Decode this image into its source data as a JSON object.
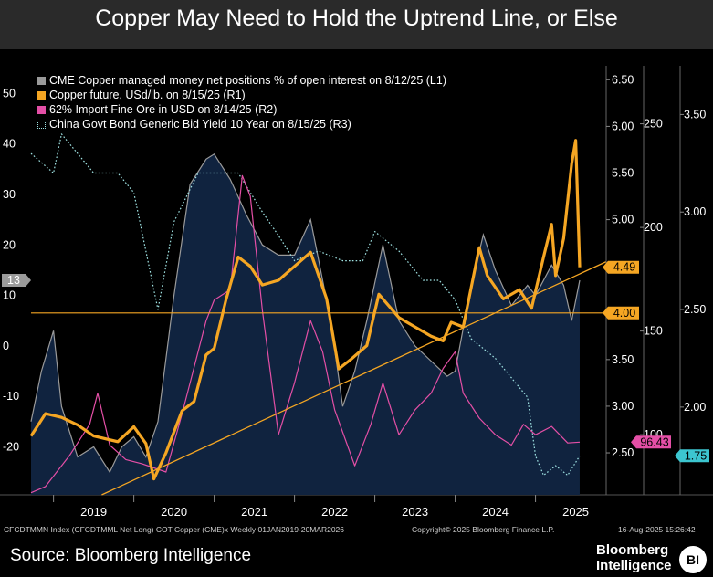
{
  "page": {
    "title": "Copper May Need to Hold the Uptrend Line, or Else",
    "footer_left": "CFCDTMMN Index (CFCDTMML Net Long) COT Copper (CME)x  Weekly 01JAN2019-20MAR2026",
    "footer_mid": "Copyright© 2025 Bloomberg Finance L.P.",
    "footer_right": "16-Aug-2025 15:26:42",
    "source": "Source: Bloomberg Intelligence",
    "brand_line1": "Bloomberg",
    "brand_line2": "Intelligence",
    "brand_badge": "BI"
  },
  "chart_data": {
    "type": "line",
    "title": "Copper May Need to Hold the Uptrend Line, or Else",
    "x_axis": {
      "range": [
        2018.72,
        2025.88
      ],
      "tick_labels": [
        "2019",
        "2020",
        "2021",
        "2022",
        "2023",
        "2024",
        "2025"
      ]
    },
    "axes": {
      "L1": {
        "range": [
          -29.5,
          55.5
        ],
        "ticks": [
          -20,
          -10,
          0,
          10,
          20,
          30,
          40,
          50
        ]
      },
      "R1": {
        "range": [
          2.05,
          6.65
        ],
        "ticks": [
          "2.50",
          "3.00",
          "3.50",
          "4.00",
          "4.50",
          "5.00",
          "5.50",
          "6.00",
          "6.50"
        ]
      },
      "R2": {
        "range": [
          71.0,
          278.0
        ],
        "ticks": [
          100,
          150,
          200,
          250
        ]
      },
      "R3": {
        "range": [
          1.55,
          3.75
        ],
        "ticks": [
          "2.00",
          "2.50",
          "3.00",
          "3.50"
        ]
      }
    },
    "series": [
      {
        "name": "CME Copper managed money net positions % of open interest on 8/12/25 (L1)",
        "axis": "L1",
        "color": "#9a9a9a",
        "fill": "#10233f",
        "points": [
          [
            2018.72,
            -15
          ],
          [
            2018.85,
            -5
          ],
          [
            2019.0,
            3
          ],
          [
            2019.1,
            -12
          ],
          [
            2019.3,
            -22
          ],
          [
            2019.5,
            -20
          ],
          [
            2019.7,
            -25
          ],
          [
            2019.85,
            -20
          ],
          [
            2020.0,
            -18
          ],
          [
            2020.15,
            -22
          ],
          [
            2020.3,
            -15
          ],
          [
            2020.5,
            10
          ],
          [
            2020.7,
            32
          ],
          [
            2020.9,
            37
          ],
          [
            2021.0,
            38
          ],
          [
            2021.2,
            33
          ],
          [
            2021.4,
            26
          ],
          [
            2021.6,
            20
          ],
          [
            2021.8,
            18
          ],
          [
            2022.0,
            18
          ],
          [
            2022.2,
            25
          ],
          [
            2022.45,
            5
          ],
          [
            2022.6,
            -12
          ],
          [
            2022.75,
            -5
          ],
          [
            2022.9,
            5
          ],
          [
            2023.1,
            20
          ],
          [
            2023.3,
            5
          ],
          [
            2023.5,
            0
          ],
          [
            2023.7,
            -3
          ],
          [
            2023.9,
            -6
          ],
          [
            2024.0,
            -5
          ],
          [
            2024.2,
            12
          ],
          [
            2024.35,
            22
          ],
          [
            2024.5,
            15
          ],
          [
            2024.7,
            8
          ],
          [
            2024.9,
            12
          ],
          [
            2025.0,
            10
          ],
          [
            2025.2,
            16
          ],
          [
            2025.35,
            12
          ],
          [
            2025.45,
            5
          ],
          [
            2025.55,
            13
          ]
        ]
      },
      {
        "name": "Copper future, USd/lb. on 8/15/25 (R1)",
        "axis": "R1",
        "color": "#f5a623",
        "points": [
          [
            2018.72,
            2.68
          ],
          [
            2018.9,
            2.92
          ],
          [
            2019.1,
            2.88
          ],
          [
            2019.3,
            2.8
          ],
          [
            2019.5,
            2.68
          ],
          [
            2019.8,
            2.62
          ],
          [
            2020.0,
            2.78
          ],
          [
            2020.15,
            2.6
          ],
          [
            2020.25,
            2.22
          ],
          [
            2020.4,
            2.5
          ],
          [
            2020.6,
            2.95
          ],
          [
            2020.75,
            3.05
          ],
          [
            2020.9,
            3.55
          ],
          [
            2021.0,
            3.62
          ],
          [
            2021.15,
            4.15
          ],
          [
            2021.3,
            4.6
          ],
          [
            2021.45,
            4.5
          ],
          [
            2021.6,
            4.3
          ],
          [
            2021.8,
            4.35
          ],
          [
            2022.0,
            4.5
          ],
          [
            2022.2,
            4.65
          ],
          [
            2022.4,
            4.15
          ],
          [
            2022.55,
            3.4
          ],
          [
            2022.7,
            3.5
          ],
          [
            2022.9,
            3.65
          ],
          [
            2023.05,
            4.2
          ],
          [
            2023.3,
            3.95
          ],
          [
            2023.5,
            3.85
          ],
          [
            2023.7,
            3.75
          ],
          [
            2023.85,
            3.7
          ],
          [
            2023.95,
            3.9
          ],
          [
            2024.1,
            3.85
          ],
          [
            2024.3,
            4.7
          ],
          [
            2024.4,
            4.4
          ],
          [
            2024.6,
            4.15
          ],
          [
            2024.8,
            4.25
          ],
          [
            2024.95,
            4.05
          ],
          [
            2025.1,
            4.6
          ],
          [
            2025.2,
            4.95
          ],
          [
            2025.25,
            4.4
          ],
          [
            2025.35,
            4.8
          ],
          [
            2025.45,
            5.6
          ],
          [
            2025.5,
            5.85
          ],
          [
            2025.55,
            4.49
          ]
        ]
      },
      {
        "name": "62% Import Fine Ore in USD on 8/14/25 (R2)",
        "axis": "R2",
        "color": "#e44fa6",
        "points": [
          [
            2018.72,
            72
          ],
          [
            2018.9,
            75
          ],
          [
            2019.2,
            90
          ],
          [
            2019.45,
            105
          ],
          [
            2019.55,
            120
          ],
          [
            2019.7,
            95
          ],
          [
            2019.9,
            88
          ],
          [
            2020.1,
            86
          ],
          [
            2020.4,
            82
          ],
          [
            2020.6,
            110
          ],
          [
            2020.9,
            155
          ],
          [
            2021.0,
            165
          ],
          [
            2021.2,
            170
          ],
          [
            2021.35,
            225
          ],
          [
            2021.45,
            215
          ],
          [
            2021.6,
            160
          ],
          [
            2021.8,
            100
          ],
          [
            2022.0,
            125
          ],
          [
            2022.2,
            155
          ],
          [
            2022.35,
            140
          ],
          [
            2022.5,
            112
          ],
          [
            2022.75,
            85
          ],
          [
            2022.95,
            105
          ],
          [
            2023.1,
            125
          ],
          [
            2023.3,
            100
          ],
          [
            2023.5,
            112
          ],
          [
            2023.7,
            120
          ],
          [
            2023.85,
            132
          ],
          [
            2024.0,
            140
          ],
          [
            2024.1,
            120
          ],
          [
            2024.3,
            108
          ],
          [
            2024.5,
            100
          ],
          [
            2024.7,
            95
          ],
          [
            2024.85,
            105
          ],
          [
            2025.0,
            100
          ],
          [
            2025.2,
            104
          ],
          [
            2025.4,
            96
          ],
          [
            2025.55,
            96.43
          ]
        ]
      },
      {
        "name": "China Govt Bond Generic Bid Yield 10 Year on 8/15/25 (R3)",
        "axis": "R3",
        "color": "#9fe3e3",
        "dash": "1.6 2.2",
        "points": [
          [
            2018.72,
            3.3
          ],
          [
            2019.0,
            3.2
          ],
          [
            2019.1,
            3.4
          ],
          [
            2019.3,
            3.3
          ],
          [
            2019.5,
            3.2
          ],
          [
            2019.8,
            3.2
          ],
          [
            2020.0,
            3.1
          ],
          [
            2020.2,
            2.7
          ],
          [
            2020.3,
            2.5
          ],
          [
            2020.5,
            2.95
          ],
          [
            2020.8,
            3.2
          ],
          [
            2021.0,
            3.2
          ],
          [
            2021.3,
            3.2
          ],
          [
            2021.6,
            3.0
          ],
          [
            2021.8,
            2.88
          ],
          [
            2022.0,
            2.75
          ],
          [
            2022.3,
            2.8
          ],
          [
            2022.6,
            2.75
          ],
          [
            2022.85,
            2.75
          ],
          [
            2023.0,
            2.9
          ],
          [
            2023.3,
            2.8
          ],
          [
            2023.6,
            2.65
          ],
          [
            2023.8,
            2.65
          ],
          [
            2024.0,
            2.55
          ],
          [
            2024.2,
            2.35
          ],
          [
            2024.5,
            2.25
          ],
          [
            2024.7,
            2.15
          ],
          [
            2024.9,
            2.05
          ],
          [
            2025.0,
            1.75
          ],
          [
            2025.1,
            1.65
          ],
          [
            2025.25,
            1.7
          ],
          [
            2025.4,
            1.65
          ],
          [
            2025.55,
            1.75
          ]
        ]
      },
      {
        "name": "Uptrend line",
        "axis": "R1",
        "color": "#f5a623",
        "points": [
          [
            2019.6,
            2.05
          ],
          [
            2025.88,
            4.55
          ]
        ]
      },
      {
        "name": "Horizontal support",
        "axis": "R1",
        "color": "#f5a623",
        "points": [
          [
            2018.72,
            4.0
          ],
          [
            2025.88,
            4.0
          ]
        ]
      }
    ],
    "value_tags": [
      {
        "axis": "L1",
        "value": 13,
        "label": "13",
        "bg": "#9a9a9a",
        "fg": "#ffffff"
      },
      {
        "axis": "R1",
        "value": 4.49,
        "label": "4.49",
        "bg": "#f5a623",
        "fg": "#000000"
      },
      {
        "axis": "R1",
        "value": 4.0,
        "label": "4.00",
        "bg": "#f5a623",
        "fg": "#000000"
      },
      {
        "axis": "R2",
        "value": 96.43,
        "label": "96.43",
        "bg": "#e44fa6",
        "fg": "#000000"
      },
      {
        "axis": "R3",
        "value": 1.75,
        "label": "1.75",
        "bg": "#3cc6d0",
        "fg": "#000000"
      }
    ],
    "legend": [
      {
        "label": "CME Copper managed money net positions % of open interest on 8/12/25 (L1)",
        "color": "#9a9a9a",
        "style": "solid"
      },
      {
        "label": "Copper future, USd/lb. on 8/15/25 (R1)",
        "color": "#f5a623",
        "style": "solid"
      },
      {
        "label": "62% Import Fine Ore in USD on 8/14/25 (R2)",
        "color": "#e44fa6",
        "style": "solid"
      },
      {
        "label": "China Govt Bond Generic Bid Yield 10 Year on 8/15/25 (R3)",
        "color": "#9fe3e3",
        "style": "dotted"
      }
    ]
  }
}
